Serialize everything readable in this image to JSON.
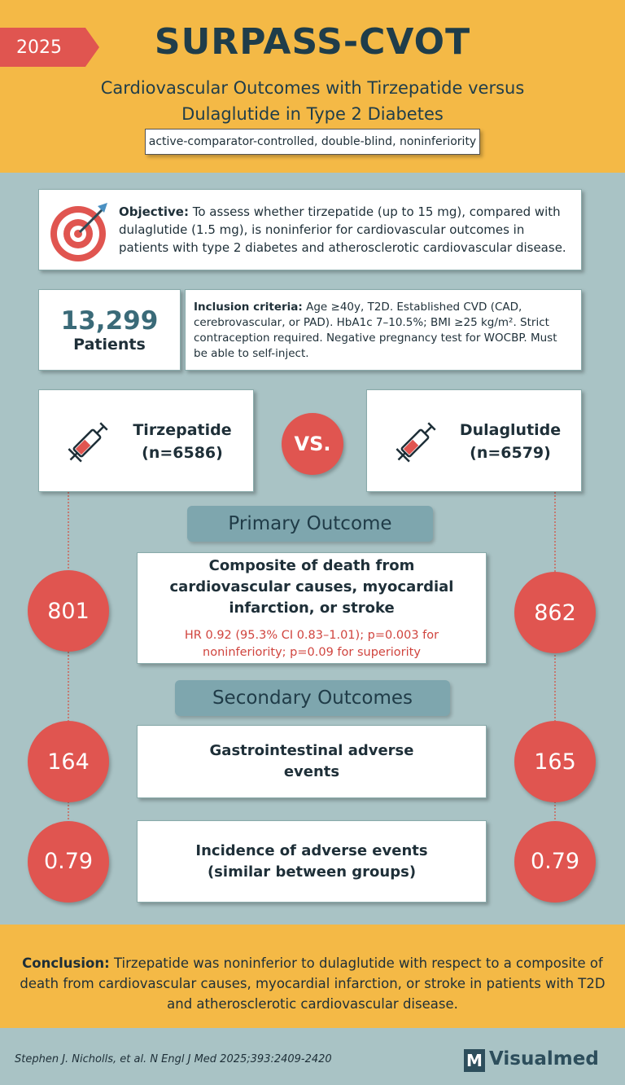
{
  "header": {
    "year": "2025",
    "title": "SURPASS-CVOT",
    "subtitle_line1": "Cardiovascular Outcomes with Tirzepatide versus",
    "subtitle_line2": "Dulaglutide in Type 2 Diabetes",
    "design": "active-comparator-controlled, double-blind, noninferiority"
  },
  "objective": {
    "label": "Objective:",
    "text": "To assess whether tirzepatide (up to 15 mg), compared with dulaglutide (1.5 mg), is noninferior for cardiovascular outcomes in patients with type 2 diabetes and atherosclerotic cardiovascular disease."
  },
  "patients": {
    "count": "13,299",
    "label": "Patients"
  },
  "inclusion": {
    "label": "Inclusion criteria:",
    "text": "Age ≥40y, T2D. Established CVD (CAD, cerebrovascular, or PAD). HbA1c 7–10.5%; BMI ≥25 kg/m². Strict contraception required. Negative pregnancy test for WOCBP. Must be able to self-inject."
  },
  "arms": [
    {
      "name": "Tirzepatide",
      "n": "(n=6586)"
    },
    {
      "name": "Dulaglutide",
      "n": "(n=6579)"
    }
  ],
  "vs": "VS.",
  "primary": {
    "heading": "Primary Outcome",
    "description": "Composite of death from cardiovascular causes, myocardial infarction, or stroke",
    "stats": "HR 0.92 (95.3% CI 0.83–1.01); p=0.003 for noninferiority; p=0.09 for superiority",
    "values": [
      "801",
      "862"
    ]
  },
  "secondary": {
    "heading": "Secondary Outcomes",
    "items": [
      {
        "label": "Gastrointestinal adverse events",
        "values": [
          "164",
          "165"
        ]
      },
      {
        "label": "Incidence of adverse events (similar between groups)",
        "values": [
          "0.79",
          "0.79"
        ]
      }
    ]
  },
  "conclusion": {
    "label": "Conclusion:",
    "text": "Tirzepatide was noninferior to dulaglutide with respect to a composite of death from cardiovascular causes, myocardial infarction, or stroke in patients with T2D and atherosclerotic cardiovascular disease."
  },
  "footer": {
    "citation": "Stephen J. Nicholls, et al. N Engl J Med 2025;393:2409-2420",
    "brand_mark": "M",
    "brand": "Visualmed"
  }
}
